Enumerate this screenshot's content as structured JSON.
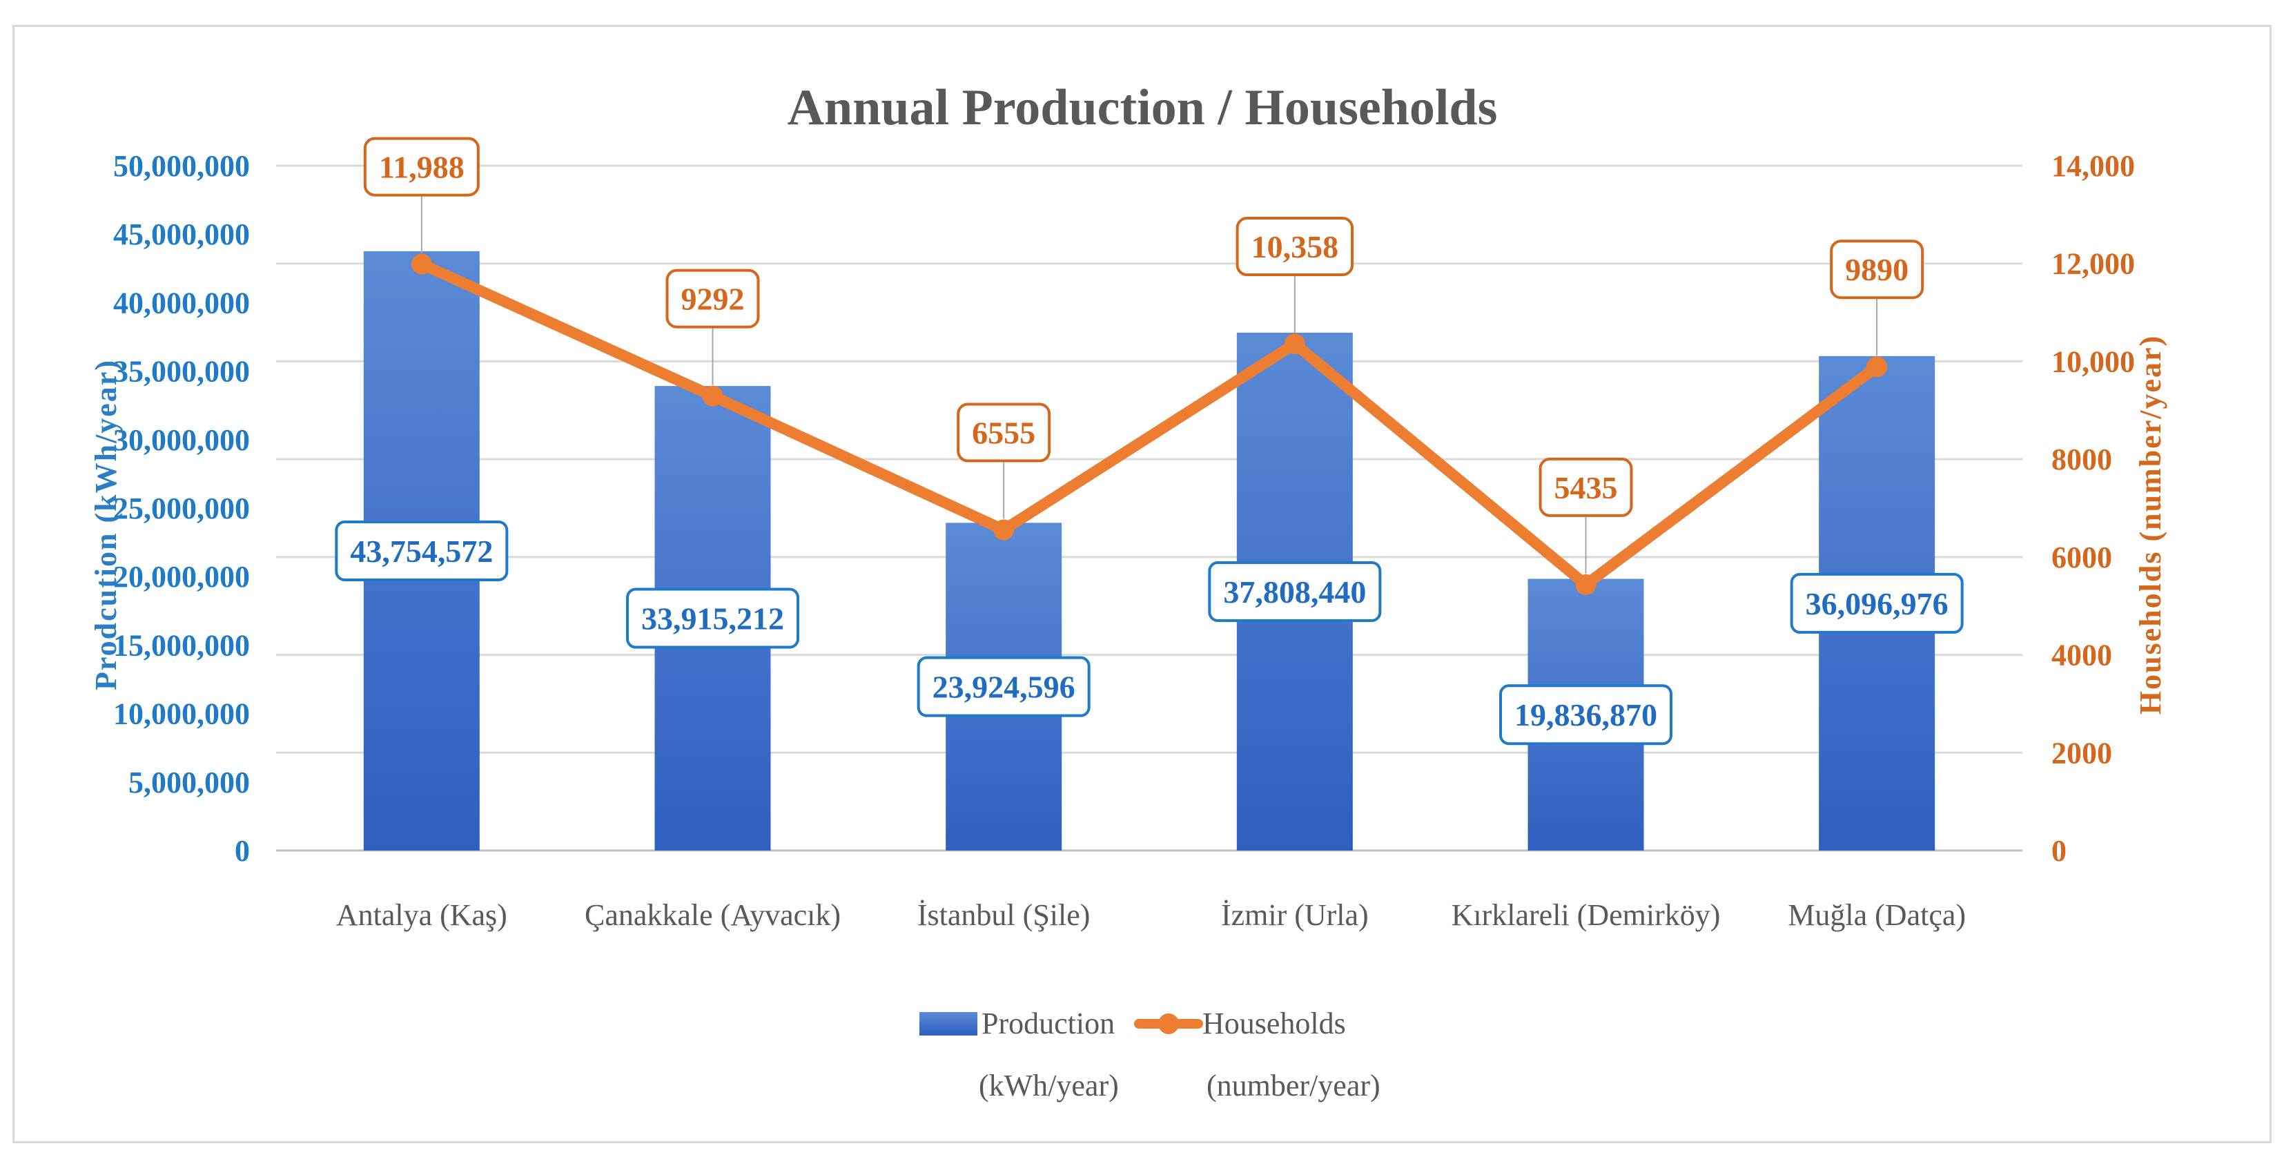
{
  "chart_data": {
    "type": "bar",
    "title": "Annual Production / Households",
    "categories": [
      "Antalya (Kaş)",
      "Çanakkale (Ayvacık)",
      "İstanbul (Şile)",
      "İzmir (Urla)",
      "Kırklareli (Demirköy)",
      "Muğla (Datça)"
    ],
    "series": [
      {
        "name": "Production (kWh/year)",
        "legend_lines": [
          "Production",
          "(kWh/year)"
        ],
        "type": "bar",
        "axis": "left",
        "color": "#4472c4",
        "values": [
          43754572,
          33915212,
          23924596,
          37808440,
          19836870,
          36096976
        ],
        "labels": [
          "43,754,572",
          "33,915,212",
          "23,924,596",
          "37,808,440",
          "19,836,870",
          "36,096,976"
        ]
      },
      {
        "name": "Households (number/year)",
        "legend_lines": [
          "Households",
          "(number/year)"
        ],
        "type": "line",
        "axis": "right",
        "color": "#ed7d31",
        "values": [
          11988,
          9292,
          6555,
          10358,
          5435,
          9890
        ],
        "labels": [
          "11,988",
          "9292",
          "6555",
          "10,358",
          "5435",
          "9890"
        ]
      }
    ],
    "ylabel": "Prodcution (kWh/year)",
    "y2label": "Households (number/year)",
    "ylim": [
      0,
      50000000
    ],
    "y2lim": [
      0,
      14000
    ],
    "yticks": [
      "0",
      "5,000,000",
      "10,000,000",
      "15,000,000",
      "20,000,000",
      "25,000,000",
      "30,000,000",
      "35,000,000",
      "40,000,000",
      "45,000,000",
      "50,000,000"
    ],
    "y2ticks": [
      "0",
      "2000",
      "4000",
      "6000",
      "8000",
      "10,000",
      "12,000",
      "14,000"
    ],
    "grid": true,
    "legend": "bottom"
  }
}
